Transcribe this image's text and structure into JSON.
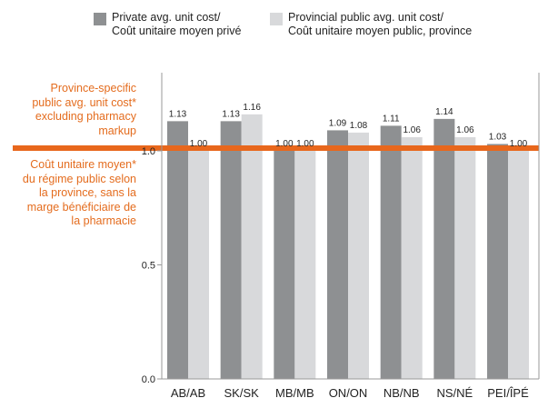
{
  "colors": {
    "private": "#8e9092",
    "public": "#d8d9db",
    "reference": "#e8671c",
    "reference_text": "#e46c1e",
    "axis": "#9a9a9a",
    "text": "#222222"
  },
  "legend": [
    {
      "lines": [
        "Private avg. unit cost/",
        "Coût unitaire moyen privé"
      ],
      "series": "private"
    },
    {
      "lines": [
        "Provincial  public avg. unit cost/",
        "Coût unitaire moyen public, province"
      ],
      "series": "public"
    }
  ],
  "reference_line": {
    "value": 1.0,
    "label_en": [
      "Province-specific",
      "public avg. unit cost*",
      "excluding pharmacy",
      "markup"
    ],
    "label_fr": [
      "Coût unitaire moyen*",
      "du régime public selon",
      "la province, sans la",
      "marge bénéficiaire de",
      "la pharmacie"
    ]
  },
  "chart_data": {
    "type": "bar",
    "categories": [
      "AB/AB",
      "SK/SK",
      "MB/MB",
      "ON/ON",
      "NB/NB",
      "NS/NÉ",
      "PEI/ÎPÉ"
    ],
    "series": [
      {
        "name": "Private avg. unit cost/ Coût unitaire moyen privé",
        "values": [
          1.13,
          1.13,
          1.0,
          1.09,
          1.11,
          1.14,
          1.03
        ],
        "labels": [
          "1.13",
          "1.13",
          "1.00",
          "1.09",
          "1.11",
          "1.14",
          "1.03"
        ]
      },
      {
        "name": "Provincial  public avg. unit cost/ Coût unitaire moyen public, province",
        "values": [
          1.0,
          1.16,
          1.0,
          1.08,
          1.06,
          1.06,
          1.0
        ],
        "labels": [
          "1.00",
          "1.16",
          "1.00",
          "1.08",
          "1.06",
          "1.06",
          "1.00"
        ]
      }
    ],
    "ylim": [
      0,
      1.35
    ],
    "yticks": [
      0.0,
      0.5,
      1.0
    ],
    "ytick_labels": [
      "0.0",
      "0.5",
      "1.0"
    ],
    "grid": false,
    "legend_position": "top"
  }
}
